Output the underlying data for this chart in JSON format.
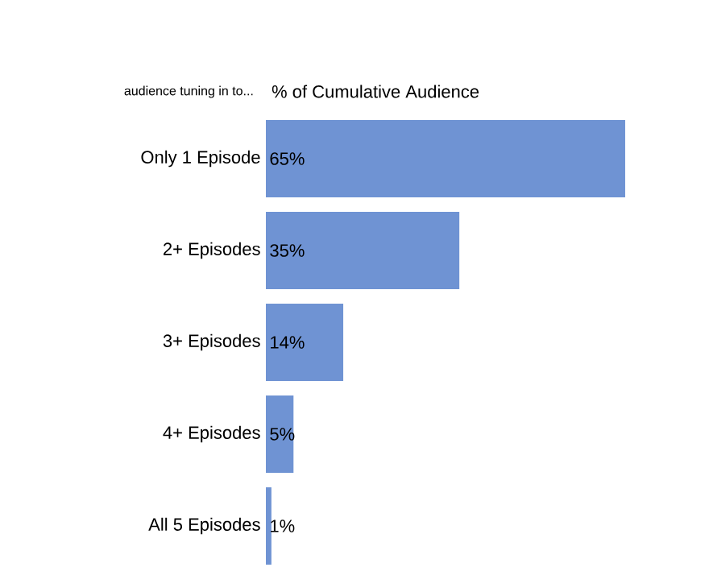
{
  "chart_data": {
    "type": "bar",
    "orientation": "horizontal",
    "title": "% of Cumulative Audience",
    "ylabel": "audience tuning in to...",
    "categories": [
      "Only 1 Episode",
      "2+ Episodes",
      "3+ Episodes",
      "4+ Episodes",
      "All 5 Episodes"
    ],
    "values": [
      65,
      35,
      14,
      5,
      1
    ],
    "color": "#6f93d3",
    "value_labels": [
      "65%",
      "35%",
      "14%",
      "5%",
      "1%"
    ]
  }
}
